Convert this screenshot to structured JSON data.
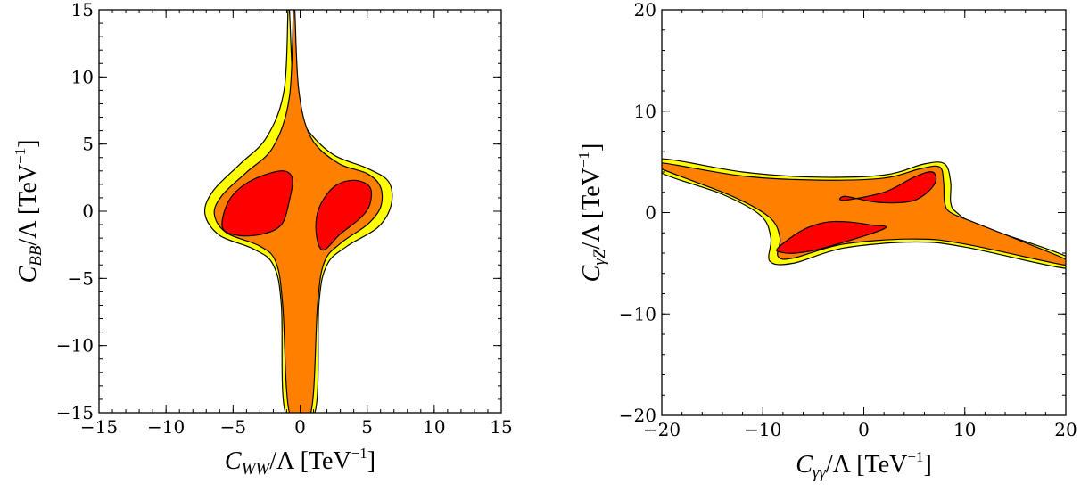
{
  "chart_data": [
    {
      "type": "contour",
      "xlabel": {
        "base": "C",
        "sub": "WW",
        "rest": "/Λ [TeV",
        "sup": "−1",
        "close": "]"
      },
      "ylabel": {
        "base": "C",
        "sub": "BB",
        "rest": "/Λ [TeV",
        "sup": "−1",
        "close": "]"
      },
      "xlim": [
        -15,
        15
      ],
      "ylim": [
        -15,
        15
      ],
      "xticks": [
        -15,
        -10,
        -5,
        0,
        5,
        10,
        15
      ],
      "yticks": [
        -15,
        -10,
        -5,
        0,
        5,
        10,
        15
      ],
      "xtick_labels": [
        "−15",
        "−10",
        "−5",
        "0",
        "5",
        "10",
        "15"
      ],
      "ytick_labels": [
        "−15",
        "−10",
        "−5",
        "0",
        "5",
        "10",
        "15"
      ],
      "colors": {
        "outer": "#ffff00",
        "middle": "#ff8000",
        "inner": "#ff0000"
      },
      "regions": [
        {
          "level": "outer",
          "points": [
            [
              -0.8,
              15
            ],
            [
              -0.4,
              8
            ],
            [
              0.6,
              6
            ],
            [
              2.5,
              4.2
            ],
            [
              5,
              3.2
            ],
            [
              6.6,
              2.2
            ],
            [
              6.8,
              0.5
            ],
            [
              5.8,
              -1.2
            ],
            [
              3.5,
              -2.6
            ],
            [
              2,
              -4
            ],
            [
              1.4,
              -7
            ],
            [
              1.1,
              -15
            ],
            [
              -1.1,
              -15
            ],
            [
              -1.4,
              -7
            ],
            [
              -2,
              -4
            ],
            [
              -3.5,
              -2.8
            ],
            [
              -6,
              -1.8
            ],
            [
              -7.1,
              -0.2
            ],
            [
              -6.5,
              1.5
            ],
            [
              -4.5,
              3.5
            ],
            [
              -2.5,
              5.5
            ],
            [
              -1.2,
              9
            ],
            [
              -0.9,
              15
            ]
          ]
        },
        {
          "level": "middle",
          "points": [
            [
              -0.4,
              15
            ],
            [
              -0.1,
              9
            ],
            [
              0.8,
              5.5
            ],
            [
              2.8,
              3.6
            ],
            [
              5,
              2.8
            ],
            [
              6,
              1.8
            ],
            [
              6,
              0.3
            ],
            [
              5,
              -1
            ],
            [
              3,
              -2.4
            ],
            [
              1.8,
              -3.8
            ],
            [
              1.3,
              -7
            ],
            [
              0.8,
              -15
            ],
            [
              -0.8,
              -15
            ],
            [
              -1.3,
              -7
            ],
            [
              -1.8,
              -3.8
            ],
            [
              -3,
              -2.6
            ],
            [
              -5.5,
              -1.6
            ],
            [
              -6.4,
              -0.2
            ],
            [
              -5.8,
              1.2
            ],
            [
              -4,
              2.9
            ],
            [
              -2,
              4.8
            ],
            [
              -0.8,
              8.5
            ],
            [
              -0.5,
              15
            ]
          ]
        },
        {
          "level": "inner",
          "points": [
            [
              -5.8,
              -1.2
            ],
            [
              -5.3,
              0.8
            ],
            [
              -3.8,
              2.2
            ],
            [
              -1.5,
              3
            ],
            [
              -0.6,
              2.5
            ],
            [
              -0.8,
              0.8
            ],
            [
              -1.4,
              -1
            ],
            [
              -2.8,
              -1.7
            ],
            [
              -4.6,
              -1.8
            ]
          ]
        },
        {
          "level": "inner",
          "points": [
            [
              1.2,
              -1.6
            ],
            [
              1.4,
              0.2
            ],
            [
              2.5,
              1.8
            ],
            [
              4,
              2.3
            ],
            [
              5.2,
              1.8
            ],
            [
              5.2,
              0.5
            ],
            [
              4.5,
              -0.5
            ],
            [
              3,
              -1.7
            ],
            [
              1.7,
              -2.9
            ]
          ]
        }
      ]
    },
    {
      "type": "contour",
      "xlabel": {
        "base": "C",
        "sub": "γγ",
        "rest": "/Λ [TeV",
        "sup": "−1",
        "close": "]"
      },
      "ylabel": {
        "base": "C",
        "sub": "γZ",
        "rest": "/Λ [TeV",
        "sup": "−1",
        "close": "]"
      },
      "xlim": [
        -20,
        20
      ],
      "ylim": [
        -20,
        20
      ],
      "xticks": [
        -20,
        -10,
        0,
        10,
        20
      ],
      "yticks": [
        -20,
        -10,
        0,
        10,
        20
      ],
      "xtick_labels": [
        "−20",
        "−10",
        "0",
        "10",
        "20"
      ],
      "ytick_labels": [
        "−20",
        "−10",
        "0",
        "10",
        "20"
      ],
      "colors": {
        "outer": "#ffff00",
        "middle": "#ff8000",
        "inner": "#ff0000"
      },
      "regions": [
        {
          "level": "outer",
          "points": [
            [
              -20,
              5.3
            ],
            [
              -12,
              4
            ],
            [
              -5,
              3.5
            ],
            [
              2,
              3.7
            ],
            [
              6,
              4.8
            ],
            [
              8,
              4.8
            ],
            [
              8.6,
              3
            ],
            [
              8.6,
              1
            ],
            [
              9.2,
              0
            ],
            [
              11.5,
              -1.3
            ],
            [
              20,
              -4.3
            ],
            [
              20,
              -5.5
            ],
            [
              10,
              -3.4
            ],
            [
              5,
              -2.9
            ],
            [
              -2,
              -3.5
            ],
            [
              -7,
              -5
            ],
            [
              -9.3,
              -4.8
            ],
            [
              -9.2,
              -2.5
            ],
            [
              -10.2,
              -0.3
            ],
            [
              -14,
              1.8
            ],
            [
              -20,
              3.9
            ]
          ]
        },
        {
          "level": "middle",
          "points": [
            [
              -20,
              4.9
            ],
            [
              -12,
              3.6
            ],
            [
              -4.5,
              3.2
            ],
            [
              2,
              3.4
            ],
            [
              5.5,
              4.3
            ],
            [
              7.5,
              4.5
            ],
            [
              7.9,
              3
            ],
            [
              8,
              1
            ],
            [
              8.6,
              0
            ],
            [
              11,
              -1
            ],
            [
              20,
              -4.6
            ],
            [
              20,
              -5.2
            ],
            [
              10,
              -3.1
            ],
            [
              5,
              -2.6
            ],
            [
              -2,
              -3.1
            ],
            [
              -7,
              -4.5
            ],
            [
              -8.5,
              -4.3
            ],
            [
              -8.3,
              -2.5
            ],
            [
              -9.3,
              -0.5
            ],
            [
              -13,
              1.6
            ],
            [
              -20,
              4.3
            ]
          ]
        },
        {
          "level": "inner",
          "points": [
            [
              -2,
              1.2
            ],
            [
              2,
              2
            ],
            [
              5,
              3.5
            ],
            [
              6.8,
              4
            ],
            [
              7,
              2.8
            ],
            [
              5,
              1.2
            ],
            [
              1.5,
              1
            ],
            [
              -1.8,
              1.6
            ]
          ]
        },
        {
          "level": "inner",
          "points": [
            [
              -8.5,
              -3.5
            ],
            [
              -6.2,
              -1.8
            ],
            [
              -4,
              -1
            ],
            [
              -2,
              -0.9
            ],
            [
              0.5,
              -1.2
            ],
            [
              2,
              -1.6
            ],
            [
              -4,
              -3.5
            ],
            [
              -6.8,
              -4
            ],
            [
              -8.2,
              -3.9
            ]
          ]
        }
      ]
    }
  ]
}
